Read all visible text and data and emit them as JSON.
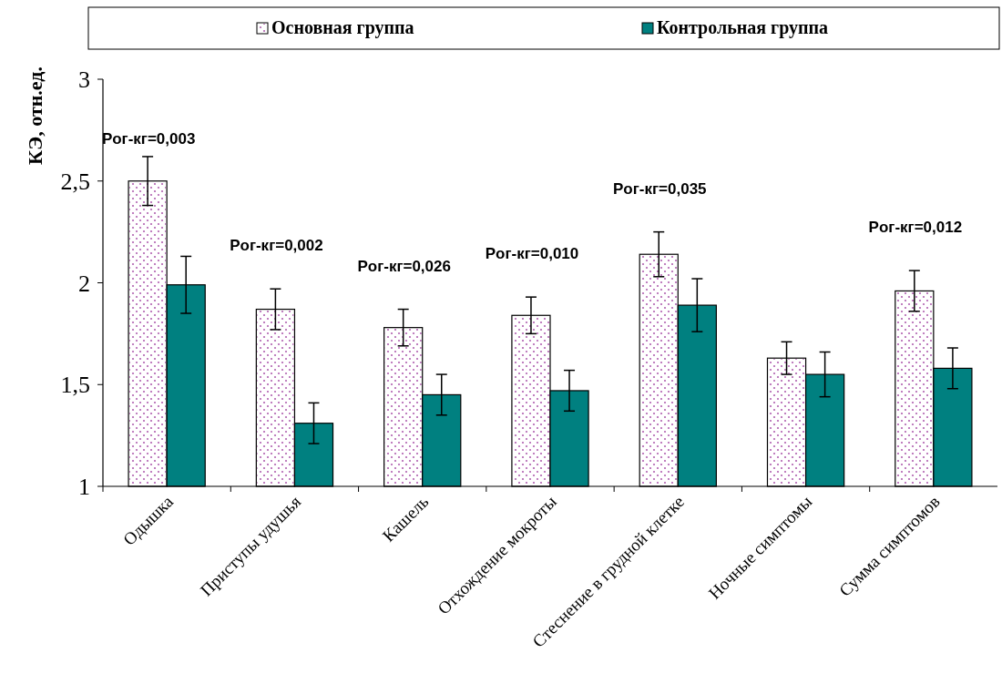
{
  "chart_data": {
    "type": "bar",
    "ylabel": "КЭ, отн.ед.",
    "categories": [
      "Одышка",
      "Приступы удушья",
      "Кашель",
      "Отхождение мокроты",
      "Стеснение в грудной клетке",
      "Ночные симптомы",
      "Сумма симптомов"
    ],
    "series": [
      {
        "name": "Основная группа",
        "color": "#ffffff",
        "values": [
          2.5,
          1.87,
          1.78,
          1.84,
          2.14,
          1.63,
          1.96
        ],
        "errors": [
          0.12,
          0.1,
          0.09,
          0.09,
          0.11,
          0.08,
          0.1
        ]
      },
      {
        "name": "Контрольная группа",
        "color": "#008080",
        "values": [
          1.99,
          1.31,
          1.45,
          1.47,
          1.89,
          1.55,
          1.58
        ],
        "errors": [
          0.14,
          0.1,
          0.1,
          0.1,
          0.13,
          0.11,
          0.1
        ]
      }
    ],
    "ylim": [
      1,
      3
    ],
    "yticks": [
      1,
      {
        "value": 1.5,
        "label": "1,5"
      },
      2,
      {
        "value": 2.5,
        "label": "2,5"
      },
      3
    ],
    "grid": false,
    "legend": "top",
    "annotations": [
      "Pог-кг=0,003",
      "Pог-кг=0,002",
      "Pог-кг=0,026",
      "Pог-кг=0,010",
      "Pог-кг=0,035",
      "Pог-кг=0,012"
    ]
  }
}
